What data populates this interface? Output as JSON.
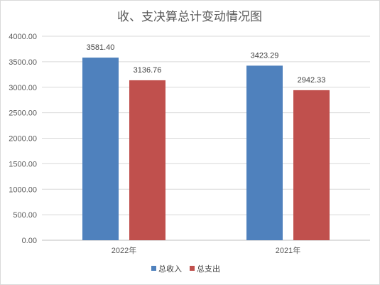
{
  "chart_data": {
    "type": "bar",
    "title": "收、支决算总计变动情况图",
    "categories": [
      "2022年",
      "2021年"
    ],
    "series": [
      {
        "name": "总收入",
        "values": [
          3581.4,
          3423.29
        ],
        "labels": [
          "3581.40",
          "3423.29"
        ],
        "color": "#4f81bd"
      },
      {
        "name": "总支出",
        "values": [
          3136.76,
          2942.33
        ],
        "labels": [
          "3136.76",
          "2942.33"
        ],
        "color": "#c0504d"
      }
    ],
    "ylim": [
      0,
      4000
    ],
    "yticks": [
      "0.00",
      "500.00",
      "1000.00",
      "1500.00",
      "2000.00",
      "2500.00",
      "3000.00",
      "3500.00",
      "4000.00"
    ],
    "grid": true,
    "legend_position": "bottom"
  }
}
